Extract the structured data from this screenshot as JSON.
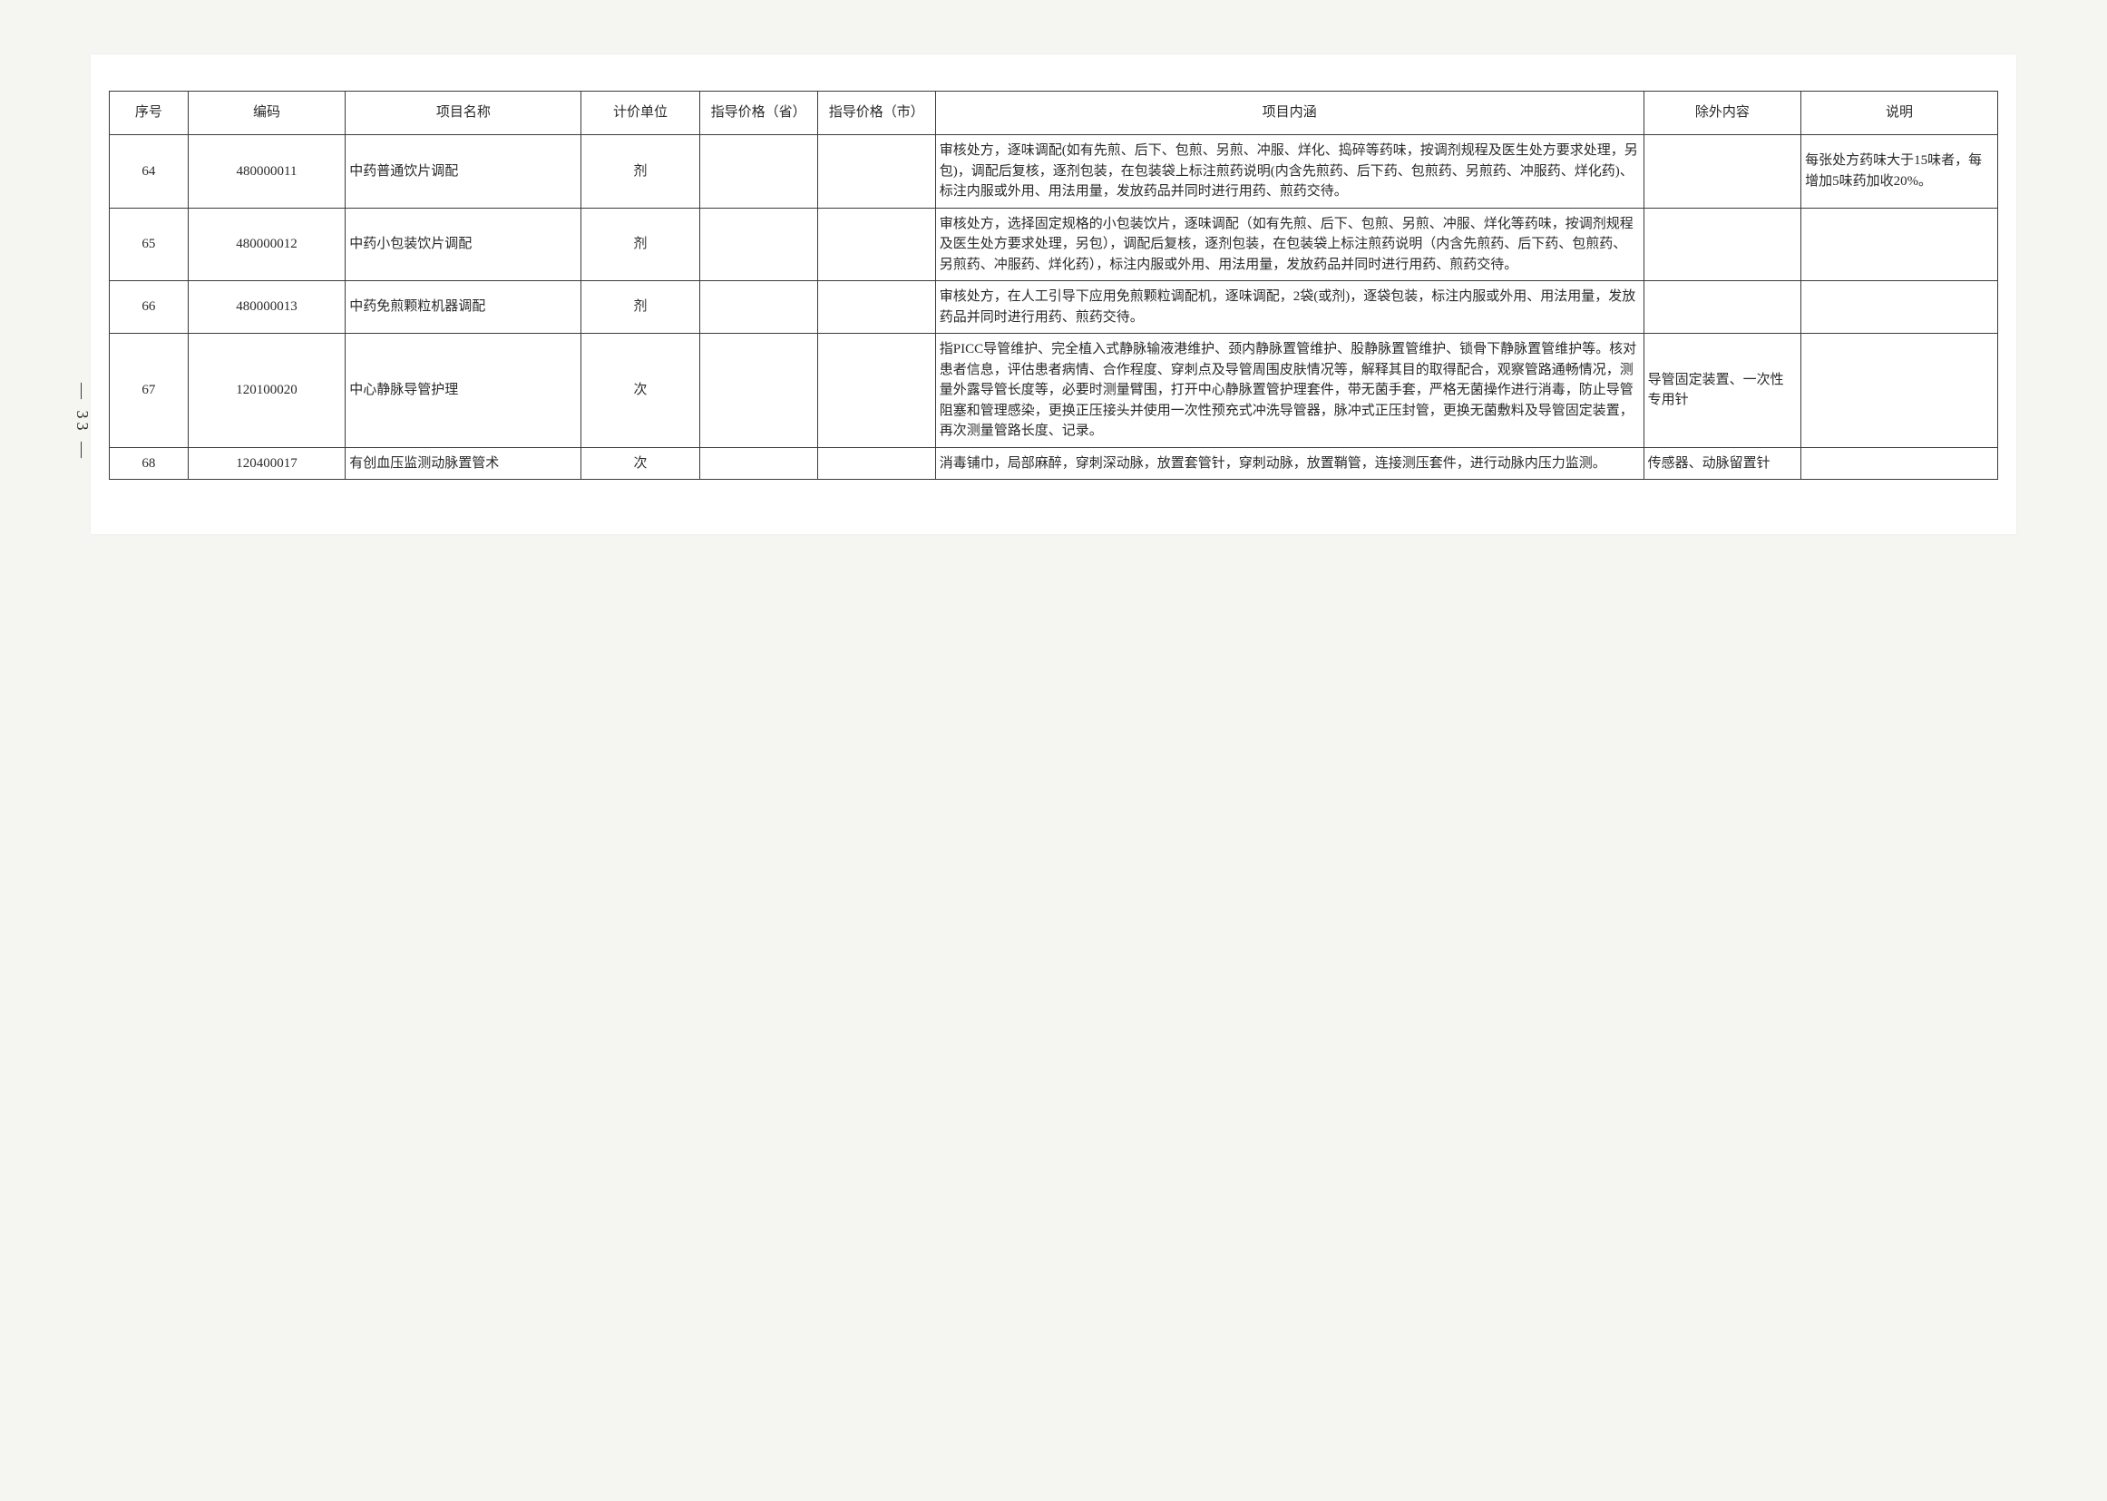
{
  "page_number": "— 33 —",
  "table": {
    "headers": {
      "seq": "序号",
      "code": "编码",
      "name": "项目名称",
      "unit": "计价单位",
      "price_province": "指导价格（省）",
      "price_city": "指导价格（市）",
      "description": "项目内涵",
      "exclude": "除外内容",
      "note": "说明"
    },
    "rows": [
      {
        "seq": "64",
        "code": "480000011",
        "name": "中药普通饮片调配",
        "unit": "剂",
        "price_province": "",
        "price_city": "",
        "description": "审核处方，逐味调配(如有先煎、后下、包煎、另煎、冲服、烊化、捣碎等药味，按调剂规程及医生处方要求处理，另包)，调配后复核，逐剂包装，在包装袋上标注煎药说明(内含先煎药、后下药、包煎药、另煎药、冲服药、烊化药)、标注内服或外用、用法用量，发放药品并同时进行用药、煎药交待。",
        "exclude": "",
        "note": "每张处方药味大于15味者，每增加5味药加收20%。"
      },
      {
        "seq": "65",
        "code": "480000012",
        "name": "中药小包装饮片调配",
        "unit": "剂",
        "price_province": "",
        "price_city": "",
        "description": "审核处方，选择固定规格的小包装饮片，逐味调配（如有先煎、后下、包煎、另煎、冲服、烊化等药味，按调剂规程及医生处方要求处理，另包），调配后复核，逐剂包装，在包装袋上标注煎药说明（内含先煎药、后下药、包煎药、另煎药、冲服药、烊化药），标注内服或外用、用法用量，发放药品并同时进行用药、煎药交待。",
        "exclude": "",
        "note": ""
      },
      {
        "seq": "66",
        "code": "480000013",
        "name": "中药免煎颗粒机器调配",
        "unit": "剂",
        "price_province": "",
        "price_city": "",
        "description": "审核处方，在人工引导下应用免煎颗粒调配机，逐味调配，2袋(或剂)，逐袋包装，标注内服或外用、用法用量，发放药品并同时进行用药、煎药交待。",
        "exclude": "",
        "note": ""
      },
      {
        "seq": "67",
        "code": "120100020",
        "name": "中心静脉导管护理",
        "unit": "次",
        "price_province": "",
        "price_city": "",
        "description": "指PICC导管维护、完全植入式静脉输液港维护、颈内静脉置管维护、股静脉置管维护、锁骨下静脉置管维护等。核对患者信息，评估患者病情、合作程度、穿刺点及导管周围皮肤情况等，解释其目的取得配合，观察管路通畅情况，测量外露导管长度等，必要时测量臂围，打开中心静脉置管护理套件，带无菌手套，严格无菌操作进行消毒，防止导管阻塞和管理感染，更换正压接头并使用一次性预充式冲洗导管器，脉冲式正压封管，更换无菌敷料及导管固定装置，再次测量管路长度、记录。",
        "exclude": "导管固定装置、一次性专用针",
        "note": ""
      },
      {
        "seq": "68",
        "code": "120400017",
        "name": "有创血压监测动脉置管术",
        "unit": "次",
        "price_province": "",
        "price_city": "",
        "description": "消毒铺巾，局部麻醉，穿刺深动脉，放置套管针，穿刺动脉，放置鞘管，连接测压套件，进行动脉内压力监测。",
        "exclude": "传感器、动脉留置针",
        "note": ""
      }
    ]
  }
}
